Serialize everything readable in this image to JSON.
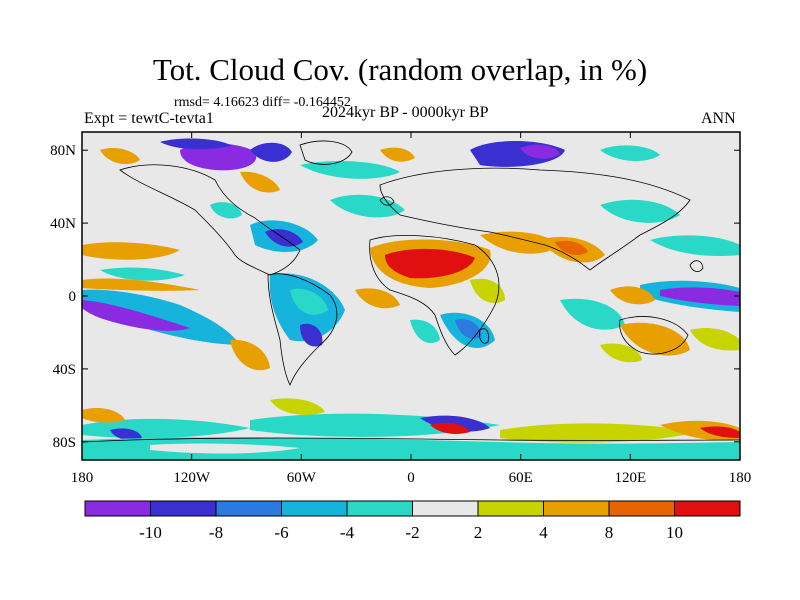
{
  "title": "Tot. Cloud Cov. (random overlap, in %)",
  "stats": "rmsd= 4.16623 diff= -0.164452",
  "expt": "Expt = tewtC-tevta1",
  "period": "2024kyr BP - 0000kyr BP",
  "season": "ANN",
  "axes": {
    "lat_labels": [
      "80N",
      "40N",
      "0",
      "40S",
      "80S"
    ],
    "lat_values": [
      80,
      40,
      0,
      -40,
      -80
    ],
    "lon_labels": [
      "180",
      "120W",
      "60W",
      "0",
      "60E",
      "120E",
      "180"
    ],
    "lon_values": [
      -180,
      -120,
      -60,
      0,
      60,
      120,
      180
    ]
  },
  "colorbar": {
    "labels": [
      "-10",
      "-8",
      "-6",
      "-4",
      "-2",
      "2",
      "4",
      "8",
      "10"
    ],
    "colors": [
      "#8a2be2",
      "#3a2fd0",
      "#2a7ae0",
      "#16b4dc",
      "#2ad8c8",
      "#e8e8e8",
      "#c8d400",
      "#e8a000",
      "#e86400",
      "#e01010"
    ]
  },
  "palette": {
    "neutral": "#e8e8e8",
    "deep_neg": "#8a2be2",
    "neg_blue": "#3a2fd0",
    "mid_blue": "#2a7ae0",
    "cyan": "#16b4dc",
    "teal": "#2ad8c8",
    "yellow": "#c8d400",
    "orange": "#e8a000",
    "dark_orange": "#e86400",
    "red": "#e01010"
  }
}
